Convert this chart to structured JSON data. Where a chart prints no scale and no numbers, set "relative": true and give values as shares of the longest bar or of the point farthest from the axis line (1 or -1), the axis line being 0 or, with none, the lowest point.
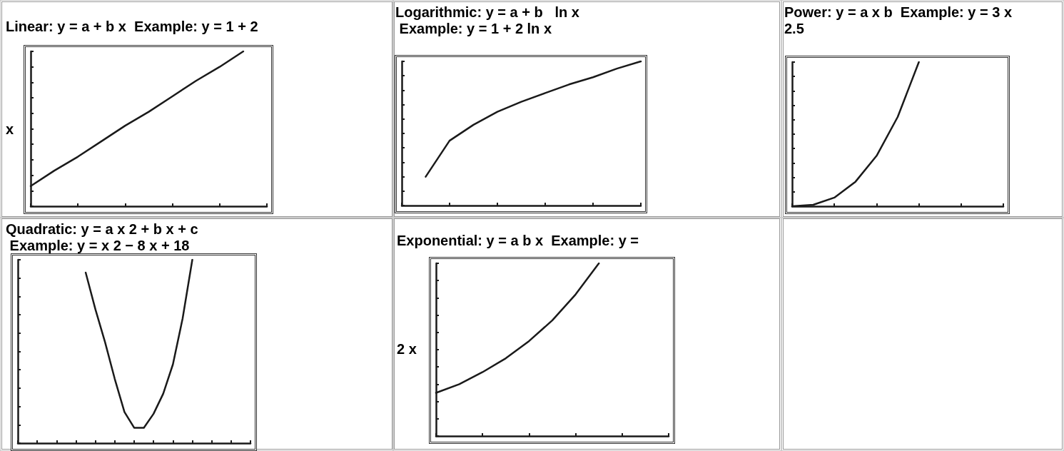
{
  "chart_data": [
    {
      "type": "line",
      "title": "Linear: y = a + b x  Example: y = 1 + 2",
      "annotations": [
        "x"
      ],
      "relative": true,
      "marker": "none",
      "grid": false,
      "categories": [
        null,
        null,
        null,
        null,
        null,
        null,
        null,
        null,
        null,
        null,
        null
      ],
      "series": [
        {
          "color": "#1a1a1a",
          "values": [
            0.13,
            0.23,
            0.32,
            0.42,
            0.52,
            0.61,
            0.71,
            0.81,
            0.9,
            1.0,
            null
          ]
        }
      ]
    },
    {
      "type": "line",
      "title": "Logarithmic: y = a + b   ln x",
      "subtitle": "Example: y = 1 + 2 ln x",
      "relative": true,
      "marker": "none",
      "grid": false,
      "categories": [
        null,
        null,
        null,
        null,
        null,
        null,
        null,
        null,
        null,
        null,
        null
      ],
      "series": [
        {
          "color": "#1a1a1a",
          "values": [
            null,
            0.2,
            0.45,
            0.56,
            0.65,
            0.72,
            0.78,
            0.84,
            0.89,
            0.95,
            1.0
          ]
        }
      ]
    },
    {
      "type": "line",
      "title": "Power: y = a x b  Example: y = 3 x 2.5",
      "relative": true,
      "marker": "none",
      "grid": false,
      "categories": [
        null,
        null,
        null,
        null,
        null,
        null,
        null,
        null,
        null,
        null,
        null
      ],
      "series": [
        {
          "color": "#1a1a1a",
          "values": [
            0,
            0.01,
            0.06,
            0.17,
            0.35,
            0.62,
            1.0,
            null,
            null,
            null,
            null
          ]
        }
      ]
    },
    {
      "type": "line",
      "title": "Quadratic: y = a x 2 + b x + c",
      "subtitle": "Example: y = x 2 − 8 x + 18",
      "relative": true,
      "marker": "none",
      "grid": false,
      "categories": [
        null,
        null,
        null,
        null,
        null,
        null,
        null,
        null,
        null,
        null,
        null,
        null,
        null,
        null,
        null,
        null,
        null,
        null,
        null,
        null,
        null,
        null,
        null,
        null,
        null
      ],
      "series": [
        {
          "color": "#1a1a1a",
          "values": [
            null,
            null,
            null,
            null,
            null,
            null,
            null,
            0.93,
            0.73,
            0.55,
            0.35,
            0.17,
            0.084,
            0.084,
            0.16,
            0.27,
            0.43,
            0.68,
            1.0,
            null,
            null,
            null,
            null,
            null,
            null
          ]
        }
      ]
    },
    {
      "type": "line",
      "title": "Exponential: y = a b x  Example: y =",
      "annotations": [
        "2 x"
      ],
      "relative": true,
      "marker": "none",
      "grid": false,
      "categories": [
        null,
        null,
        null,
        null,
        null,
        null,
        null,
        null,
        null,
        null,
        null
      ],
      "series": [
        {
          "color": "#1a1a1a",
          "values": [
            0.25,
            0.3,
            0.37,
            0.45,
            0.55,
            0.67,
            0.82,
            1.0,
            null,
            null,
            null
          ]
        }
      ]
    }
  ]
}
